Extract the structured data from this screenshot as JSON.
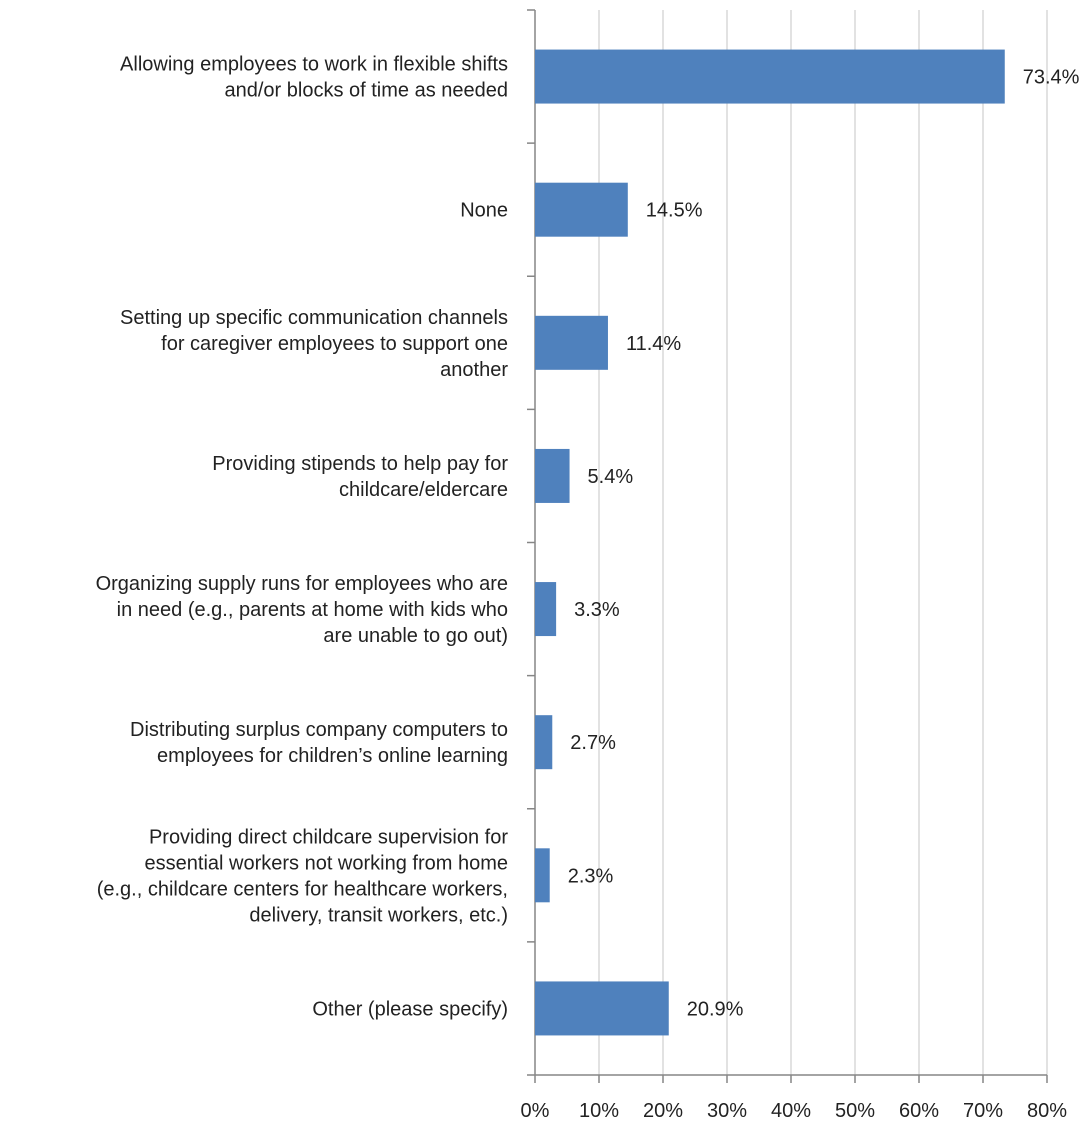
{
  "chart_data": {
    "type": "bar",
    "orientation": "horizontal",
    "title": "",
    "xlabel": "",
    "ylabel": "",
    "xlim": [
      0,
      80
    ],
    "x_ticks": [
      "0%",
      "10%",
      "20%",
      "30%",
      "40%",
      "50%",
      "60%",
      "70%",
      "80%"
    ],
    "grid": "vertical",
    "legend": "none",
    "bar_color": "#4F81BD",
    "categories": [
      [
        "Allowing employees to work in flexible shifts",
        "and/or blocks of time as needed"
      ],
      [
        "None"
      ],
      [
        "Setting up specific communication channels",
        "for caregiver employees to support one",
        "another"
      ],
      [
        "Providing stipends to help pay for",
        "childcare/eldercare"
      ],
      [
        "Organizing supply runs for employees who are",
        "in need (e.g., parents at home with kids who",
        "are unable to go out)"
      ],
      [
        "Distributing surplus company computers to",
        "employees for children’s online learning"
      ],
      [
        "Providing direct childcare supervision for",
        "essential workers not working from home",
        "(e.g., childcare centers for healthcare workers,",
        "delivery, transit workers, etc.)"
      ],
      [
        "Other (please specify)"
      ]
    ],
    "values": [
      73.4,
      14.5,
      11.4,
      5.4,
      3.3,
      2.7,
      2.3,
      20.9
    ],
    "data_labels": [
      "73.4%",
      "14.5%",
      "11.4%",
      "5.4%",
      "3.3%",
      "2.7%",
      "2.3%",
      "20.9%"
    ]
  }
}
